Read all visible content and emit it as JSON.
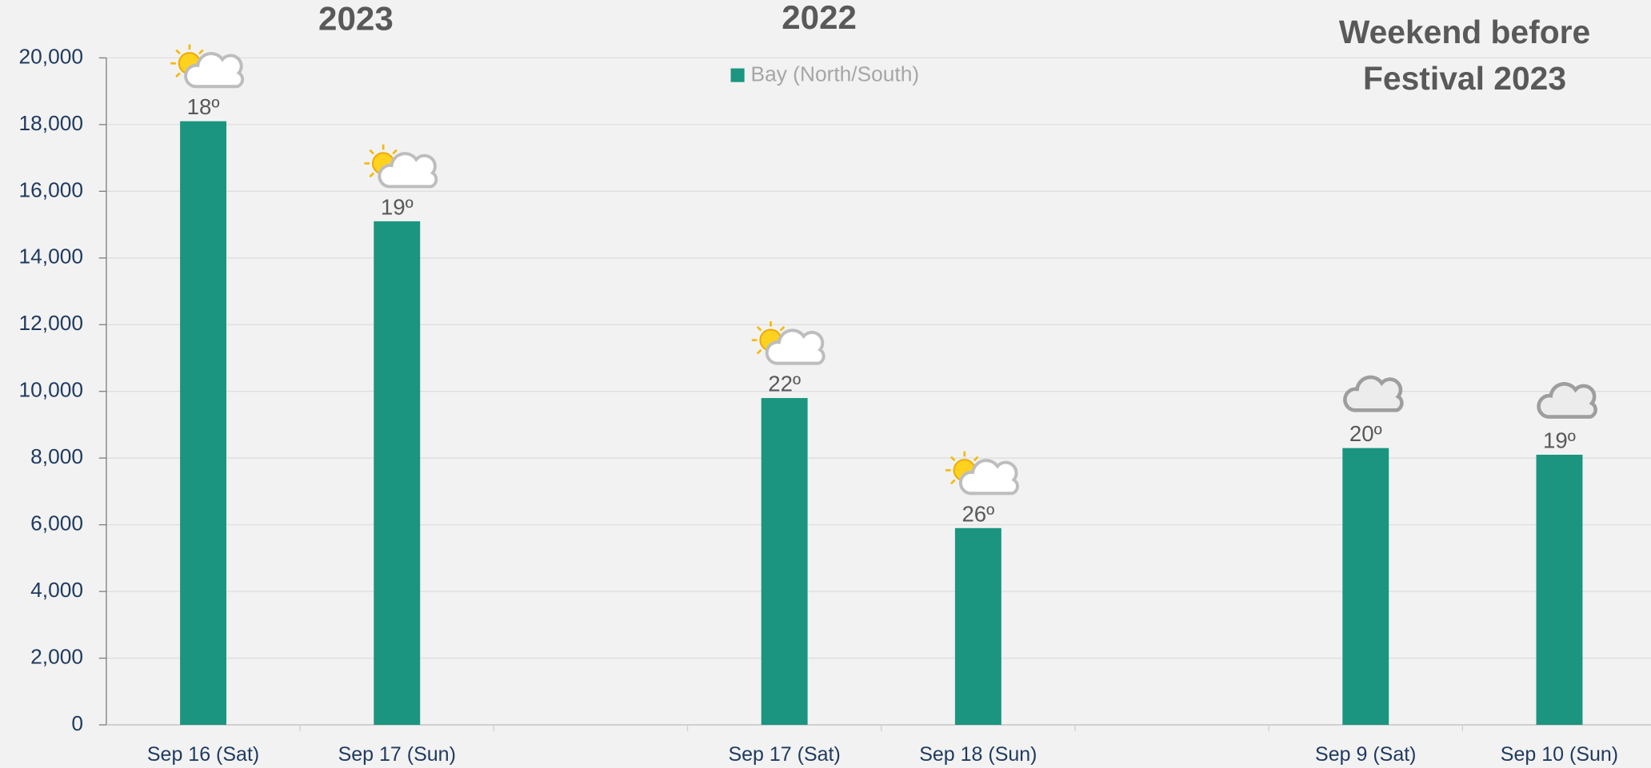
{
  "chart_data": {
    "type": "bar",
    "group_titles": [
      [
        "2023"
      ],
      [
        "2022"
      ],
      [
        "Weekend before",
        "Festival 2023"
      ]
    ],
    "categories": [
      "Sep 16 (Sat)",
      "Sep 17 (Sun)",
      null,
      "Sep 17 (Sat)",
      "Sep 18 (Sun)",
      null,
      "Sep 9 (Sat)",
      "Sep 10 (Sun)"
    ],
    "series": [
      {
        "name": "Bay (North/South)",
        "color": "#1b957f",
        "values": [
          18100,
          15100,
          null,
          9800,
          5900,
          null,
          8300,
          8100
        ],
        "bar_labels": [
          "18º",
          "19º",
          null,
          "22º",
          "26º",
          null,
          "20º",
          "19º"
        ]
      }
    ],
    "ylim": [
      0,
      20000
    ],
    "yticks": [
      {
        "value": 0,
        "label": "0"
      },
      {
        "value": 2000,
        "label": "2,000"
      },
      {
        "value": 4000,
        "label": "4,000"
      },
      {
        "value": 6000,
        "label": "6,000"
      },
      {
        "value": 8000,
        "label": "8,000"
      },
      {
        "value": 10000,
        "label": "10,000"
      },
      {
        "value": 12000,
        "label": "12,000"
      },
      {
        "value": 14000,
        "label": "14,000"
      },
      {
        "value": 16000,
        "label": "16,000"
      },
      {
        "value": 18000,
        "label": "18,000"
      },
      {
        "value": 20000,
        "label": "20,000"
      }
    ],
    "grid": true,
    "legend": "top"
  }
}
